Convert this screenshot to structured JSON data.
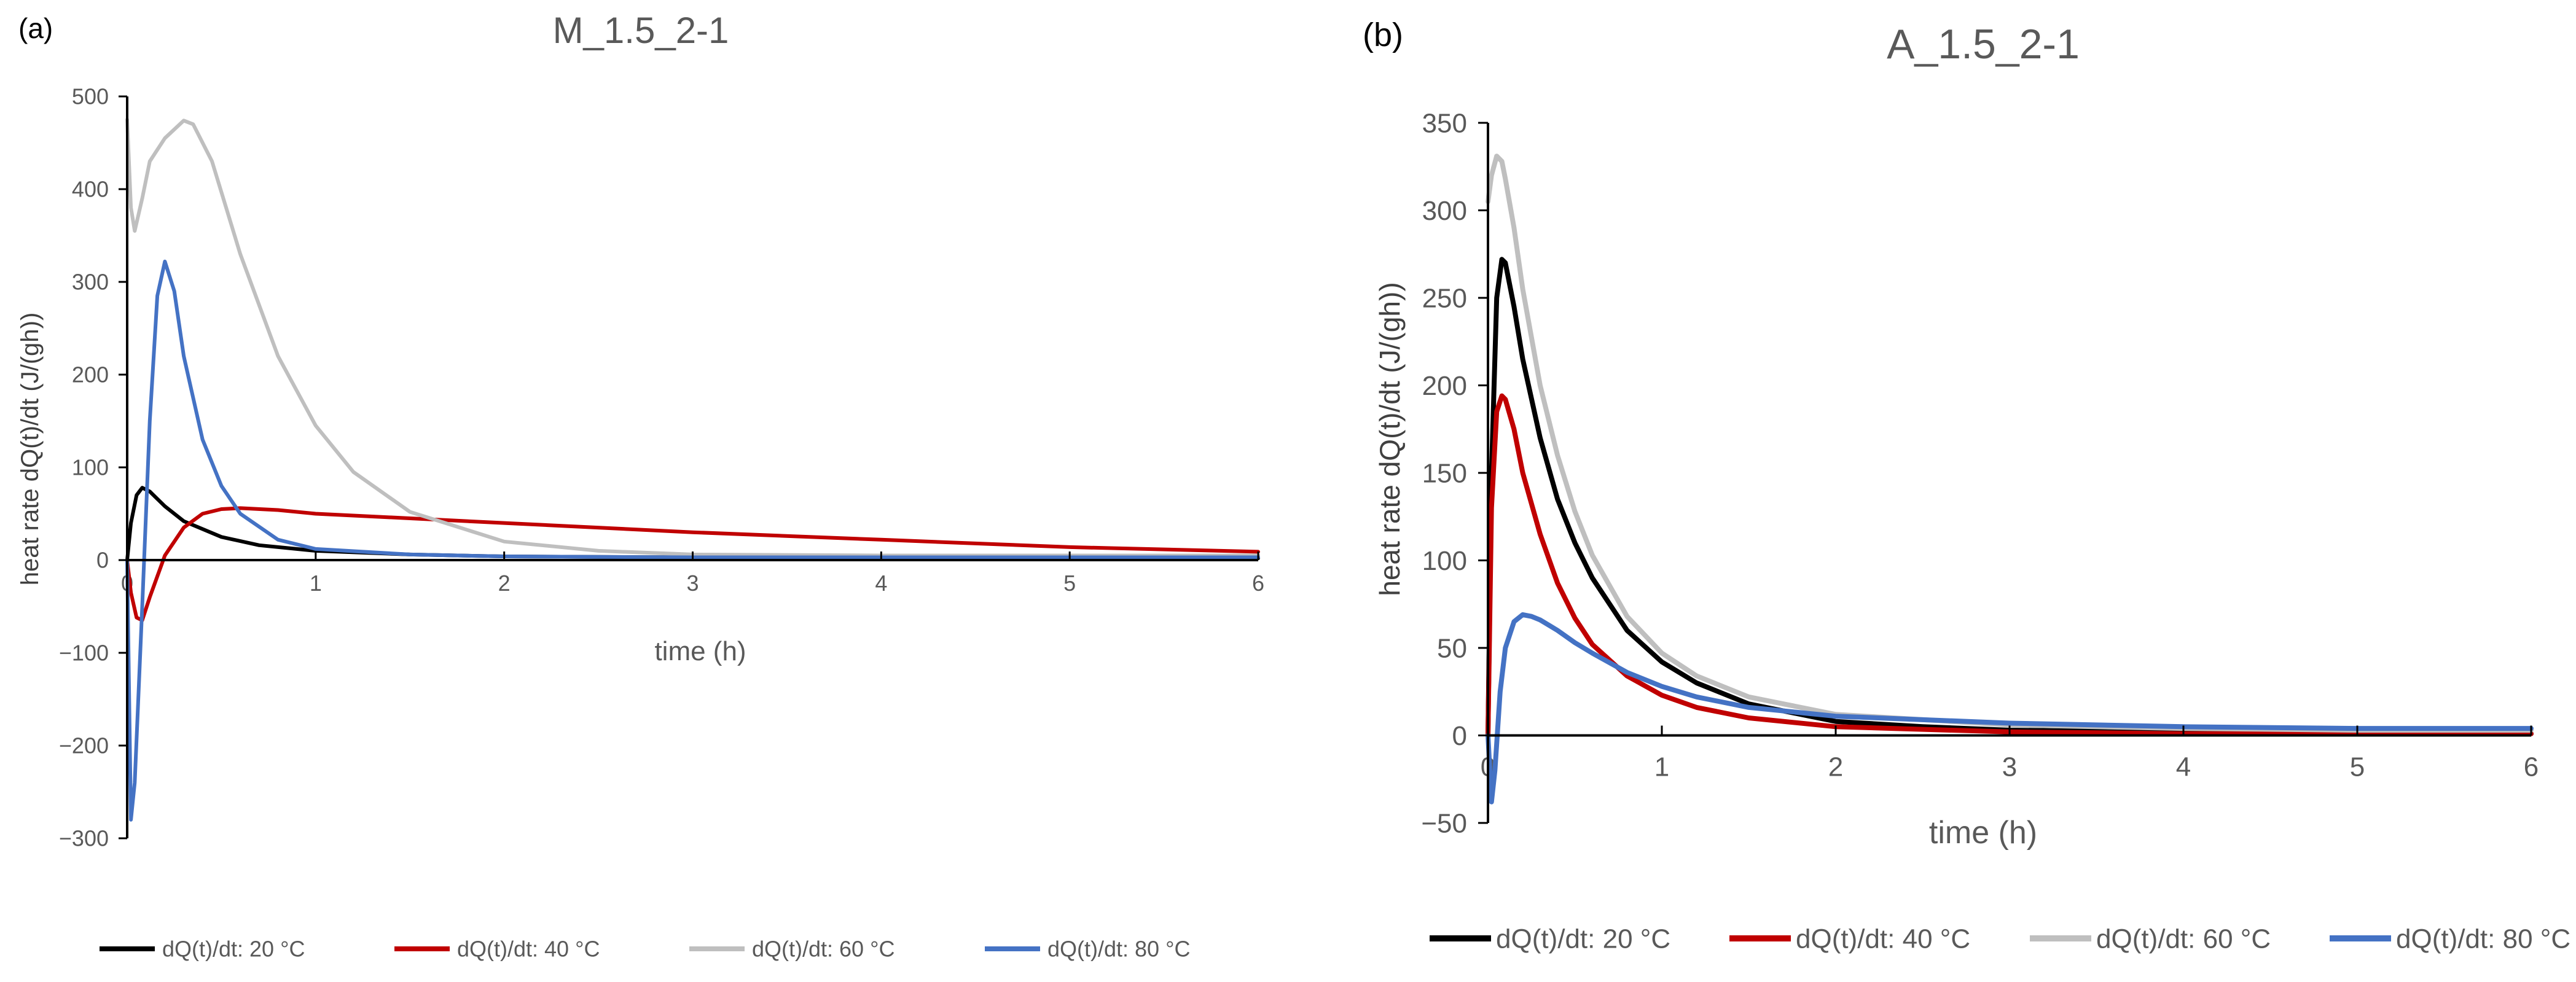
{
  "chart_data": [
    {
      "type": "line",
      "panel_label": "(a)",
      "title": "M_1.5_2-1",
      "xlabel": "time (h)",
      "ylabel": "heat rate dQ(t)/dt (J/(gh))",
      "xlim": [
        0,
        6
      ],
      "ylim": [
        -300,
        500
      ],
      "xticks": [
        0,
        1,
        2,
        3,
        4,
        5,
        6
      ],
      "yticks": [
        -300,
        -200,
        -100,
        0,
        100,
        200,
        300,
        400,
        500
      ],
      "ytick_labels": [
        "−300",
        "−200",
        "−100",
        "0",
        "100",
        "200",
        "300",
        "400",
        "500"
      ],
      "grid": false,
      "legend_position": "bottom",
      "series": [
        {
          "name": "dQ(t)/dt: 20 °C",
          "color": "#000000",
          "x": [
            0,
            0.02,
            0.05,
            0.08,
            0.12,
            0.2,
            0.3,
            0.5,
            0.7,
            1.0,
            1.5,
            2.0,
            3.0,
            4.0,
            5.0,
            6.0
          ],
          "y": [
            0,
            40,
            70,
            78,
            74,
            58,
            42,
            25,
            16,
            10,
            6,
            4,
            3,
            2,
            2,
            2
          ]
        },
        {
          "name": "dQ(t)/dt: 40 °C",
          "color": "#c00000",
          "x": [
            0,
            0.02,
            0.05,
            0.08,
            0.12,
            0.2,
            0.3,
            0.4,
            0.5,
            0.6,
            0.8,
            1.0,
            1.5,
            2.0,
            3.0,
            4.0,
            5.0,
            6.0
          ],
          "y": [
            0,
            -35,
            -62,
            -65,
            -40,
            5,
            35,
            50,
            55,
            56,
            54,
            50,
            45,
            40,
            30,
            22,
            14,
            9
          ]
        },
        {
          "name": "dQ(t)/dt: 60 °C",
          "color": "#bfbfbf",
          "x": [
            0,
            0.02,
            0.04,
            0.08,
            0.12,
            0.2,
            0.3,
            0.35,
            0.45,
            0.6,
            0.8,
            1.0,
            1.2,
            1.5,
            2.0,
            2.5,
            3.0,
            4.0,
            5.0,
            6.0
          ],
          "y": [
            475,
            380,
            355,
            390,
            430,
            455,
            474,
            470,
            430,
            330,
            220,
            145,
            95,
            52,
            20,
            10,
            6,
            5,
            5,
            5
          ]
        },
        {
          "name": "dQ(t)/dt: 80 °C",
          "color": "#4472c4",
          "x": [
            0,
            0.02,
            0.04,
            0.08,
            0.12,
            0.16,
            0.2,
            0.25,
            0.3,
            0.4,
            0.5,
            0.6,
            0.8,
            1.0,
            1.5,
            2.0,
            3.0,
            4.0,
            5.0,
            6.0
          ],
          "y": [
            0,
            -280,
            -240,
            -50,
            150,
            285,
            322,
            290,
            220,
            130,
            80,
            50,
            22,
            12,
            6,
            4,
            3,
            3,
            3,
            3
          ]
        }
      ]
    },
    {
      "type": "line",
      "panel_label": "(b)",
      "title": "A_1.5_2-1",
      "xlabel": "time (h)",
      "ylabel": "heat rate dQ(t)/dt (J/(gh))",
      "xlim": [
        0,
        6
      ],
      "ylim": [
        -50,
        350
      ],
      "xticks": [
        0,
        1,
        2,
        3,
        4,
        5,
        6
      ],
      "yticks": [
        -50,
        0,
        50,
        100,
        150,
        200,
        250,
        300,
        350
      ],
      "ytick_labels": [
        "−50",
        "0",
        "50",
        "100",
        "150",
        "200",
        "250",
        "300",
        "350"
      ],
      "grid": false,
      "legend_position": "bottom",
      "series": [
        {
          "name": "dQ(t)/dt: 20 °C",
          "color": "#000000",
          "x": [
            0,
            0.02,
            0.05,
            0.08,
            0.1,
            0.15,
            0.2,
            0.3,
            0.4,
            0.5,
            0.6,
            0.8,
            1.0,
            1.2,
            1.5,
            2.0,
            2.5,
            3.0,
            4.0,
            5.0,
            6.0
          ],
          "y": [
            0,
            150,
            250,
            272,
            270,
            245,
            215,
            170,
            135,
            110,
            90,
            60,
            42,
            30,
            18,
            8,
            5,
            3,
            2,
            1,
            1
          ]
        },
        {
          "name": "dQ(t)/dt: 40 °C",
          "color": "#c00000",
          "x": [
            0,
            0.02,
            0.05,
            0.08,
            0.1,
            0.15,
            0.2,
            0.3,
            0.4,
            0.5,
            0.6,
            0.8,
            1.0,
            1.2,
            1.5,
            2.0,
            3.0,
            4.0,
            5.0,
            6.0
          ],
          "y": [
            0,
            130,
            185,
            194,
            192,
            175,
            150,
            115,
            87,
            67,
            52,
            34,
            23,
            16,
            10,
            5,
            2,
            1,
            1,
            1
          ]
        },
        {
          "name": "dQ(t)/dt: 60 °C",
          "color": "#bfbfbf",
          "x": [
            0,
            0.02,
            0.05,
            0.08,
            0.1,
            0.15,
            0.2,
            0.3,
            0.4,
            0.5,
            0.6,
            0.8,
            1.0,
            1.2,
            1.5,
            2.0,
            3.0,
            4.0,
            5.0,
            6.0
          ],
          "y": [
            305,
            320,
            331,
            328,
            318,
            290,
            255,
            200,
            160,
            128,
            103,
            68,
            47,
            34,
            22,
            12,
            6,
            4,
            3,
            3
          ]
        },
        {
          "name": "dQ(t)/dt: 80 °C",
          "color": "#4472c4",
          "x": [
            0,
            0.02,
            0.04,
            0.07,
            0.1,
            0.15,
            0.2,
            0.25,
            0.3,
            0.4,
            0.5,
            0.6,
            0.8,
            1.0,
            1.2,
            1.5,
            2.0,
            3.0,
            4.0,
            5.0,
            6.0
          ],
          "y": [
            0,
            -38,
            -20,
            25,
            50,
            65,
            69,
            68,
            66,
            60,
            53,
            47,
            36,
            28,
            22,
            16,
            11,
            7,
            5,
            4,
            4
          ]
        }
      ]
    }
  ]
}
